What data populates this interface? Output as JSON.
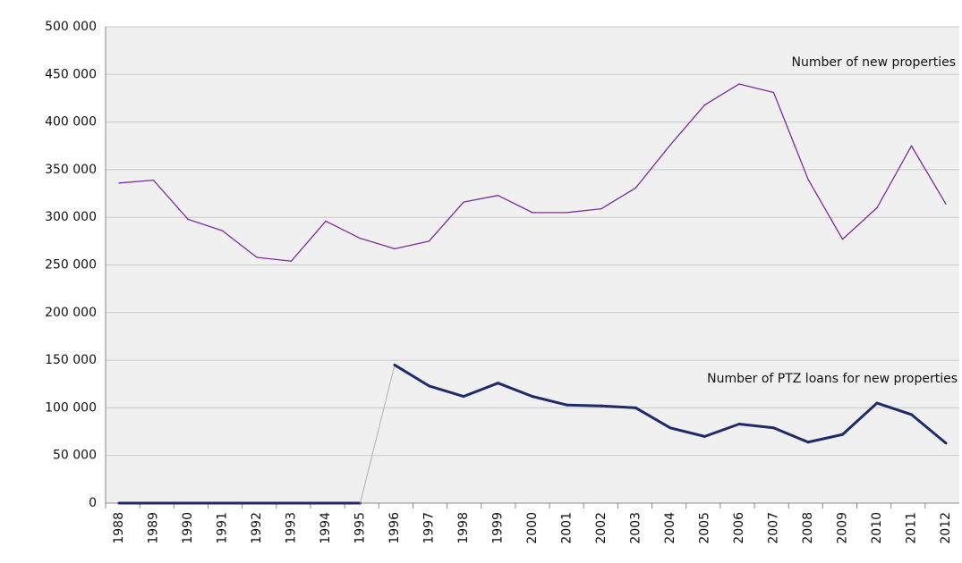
{
  "chart_data": {
    "type": "line",
    "categories": [
      "1988",
      "1989",
      "1990",
      "1991",
      "1992",
      "1993",
      "1994",
      "1995",
      "1996",
      "1997",
      "1998",
      "1999",
      "2000",
      "2001",
      "2002",
      "2003",
      "2004",
      "2005",
      "2006",
      "2007",
      "2008",
      "2009",
      "2010",
      "2011",
      "2012"
    ],
    "series": [
      {
        "name": "Number of new properties",
        "color": "#7a2d9c",
        "values": [
          336000,
          339000,
          298000,
          286000,
          258000,
          254000,
          296000,
          278000,
          267000,
          275000,
          316000,
          323000,
          305000,
          305000,
          309000,
          331000,
          376000,
          418000,
          440000,
          431000,
          340000,
          277000,
          310000,
          375000,
          314000
        ]
      },
      {
        "name": "Number of PTZ loans for new properties",
        "color": "#1f2a6b",
        "values": [
          0,
          0,
          0,
          0,
          0,
          0,
          0,
          0,
          145000,
          123000,
          112000,
          126000,
          112000,
          103000,
          102000,
          100000,
          79000,
          70000,
          83000,
          79000,
          64000,
          72000,
          105000,
          93000,
          63000
        ]
      }
    ],
    "ylim": [
      0,
      500000
    ],
    "yticks": [
      0,
      {
        "value": 50000,
        "label": "50 000"
      },
      {
        "value": 100000,
        "label": "100 000"
      },
      {
        "value": 150000,
        "label": "150 000"
      },
      {
        "value": 200000,
        "label": "200 000"
      },
      {
        "value": 250000,
        "label": "250 000"
      },
      {
        "value": 300000,
        "label": "300 000"
      },
      {
        "value": 350000,
        "label": "350 000"
      },
      {
        "value": 400000,
        "label": "400 000"
      },
      {
        "value": 450000,
        "label": "450 000"
      },
      {
        "value": 500000,
        "label": "500 000"
      }
    ],
    "grid": true
  }
}
